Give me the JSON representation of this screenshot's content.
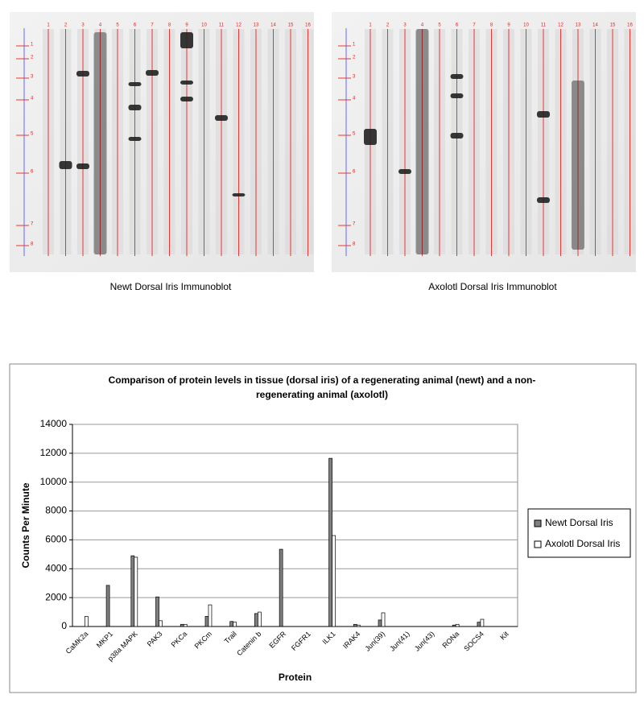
{
  "chart_data": {
    "type": "bar",
    "title": "Comparison of protein levels in tissue (dorsal iris) of a regenerating animal (newt) and a non-regenerating animal (axolotl)",
    "x_label": "Protein",
    "y_label": "Counts Per Minute",
    "categories": [
      "CaMK2a",
      "MKP1",
      "p38a MAPK",
      "PAK3",
      "PKCa",
      "PKCm",
      "Trail",
      "Catenin b",
      "EGFR",
      "FGFR1",
      "ILK1",
      "IRAK4",
      "Jun(39)",
      "Jun(41)",
      "Jun(43)",
      "RONa",
      "SOCS4",
      "Kit"
    ],
    "series": [
      {
        "name": "Newt Dorsal Iris",
        "color": "#808080",
        "values": [
          0,
          2850,
          4900,
          2050,
          150,
          700,
          350,
          900,
          5350,
          0,
          11650,
          150,
          450,
          0,
          0,
          100,
          300,
          0
        ]
      },
      {
        "name": "Axolotl Dorsal Iris",
        "color": "#ffffff",
        "values": [
          700,
          0,
          4800,
          400,
          150,
          1500,
          300,
          1000,
          0,
          0,
          6300,
          100,
          950,
          0,
          0,
          150,
          500,
          0
        ]
      }
    ],
    "ylim": [
      0,
      14000
    ],
    "yticks": [
      0,
      2000,
      4000,
      6000,
      8000,
      10000,
      12000,
      14000
    ],
    "grid": true,
    "legend": "right"
  },
  "blots": [
    {
      "caption": "Newt Dorsal Iris Immunoblot",
      "lanes": [
        "1",
        "2",
        "3",
        "4",
        "5",
        "6",
        "7",
        "8",
        "9",
        "10",
        "11",
        "12",
        "13",
        "14",
        "15",
        "16"
      ],
      "markers": [
        "1",
        "2",
        "3",
        "4",
        "5",
        "6",
        "7",
        "8"
      ]
    },
    {
      "caption": "Axolotl Dorsal Iris Immunoblot",
      "lanes": [
        "1",
        "2",
        "3",
        "4",
        "5",
        "6",
        "7",
        "8",
        "9",
        "10",
        "11",
        "12",
        "13",
        "14",
        "15",
        "16"
      ],
      "markers": [
        "1",
        "2",
        "3",
        "4",
        "5",
        "6",
        "7",
        "8"
      ]
    }
  ]
}
